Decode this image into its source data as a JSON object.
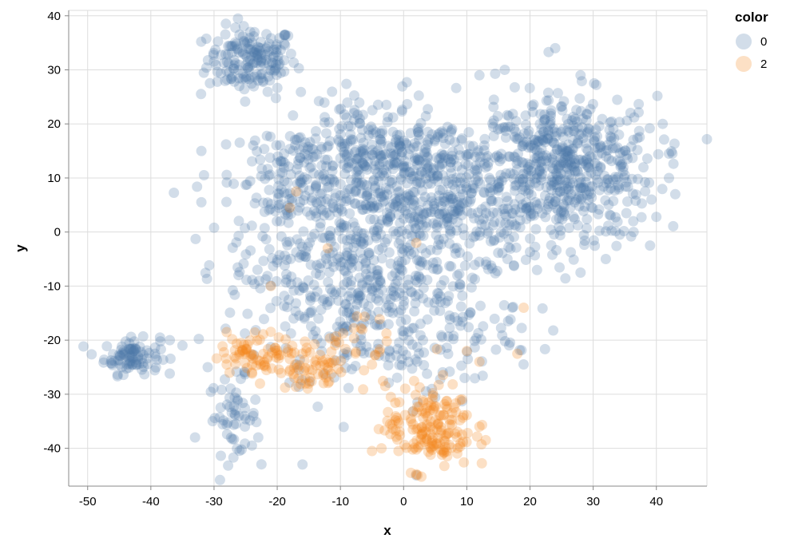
{
  "chart_data": {
    "type": "scatter",
    "xlabel": "x",
    "ylabel": "y",
    "xlim": [
      -53,
      48
    ],
    "ylim": [
      -47,
      41
    ],
    "x_ticks": [
      -50,
      -40,
      -30,
      -20,
      -10,
      0,
      10,
      20,
      30,
      40
    ],
    "y_ticks": [
      -40,
      -30,
      -20,
      -10,
      0,
      10,
      20,
      30,
      40
    ],
    "grid": true,
    "legend": {
      "title": "color",
      "position": "top-right"
    },
    "colors": {
      "0": "#4c78a8",
      "2": "#f58518"
    },
    "opacity": 0.25,
    "series": [
      {
        "name": "0",
        "clusters": [
          {
            "cx": -24,
            "cy": 32,
            "sx": 3.5,
            "sy": 3.0,
            "n": 170
          },
          {
            "cx": -43,
            "cy": -23,
            "sx": 2.2,
            "sy": 1.6,
            "n": 90
          },
          {
            "cx": -27,
            "cy": -34,
            "sx": 2.0,
            "sy": 3.5,
            "n": 55
          },
          {
            "cx": 26,
            "cy": 12,
            "sx": 7.0,
            "sy": 6.5,
            "n": 480
          },
          {
            "cx": 5,
            "cy": 6,
            "sx": 11.0,
            "sy": 8.0,
            "n": 650
          },
          {
            "cx": -12,
            "cy": -6,
            "sx": 8.0,
            "sy": 9.0,
            "n": 300
          },
          {
            "cx": -5,
            "cy": 15,
            "sx": 8.0,
            "sy": 5.0,
            "n": 200
          },
          {
            "cx": 0,
            "cy": -18,
            "sx": 9.0,
            "sy": 6.0,
            "n": 200
          },
          {
            "cx": -20,
            "cy": 10,
            "sx": 4.0,
            "sy": 5.0,
            "n": 80
          }
        ],
        "points": [
          [
            24,
            34
          ],
          [
            -32,
            15
          ],
          [
            -32,
            5.5
          ],
          [
            -30,
            0.8
          ],
          [
            -31,
            -25
          ],
          [
            -37,
            -20
          ],
          [
            -35,
            -21
          ],
          [
            -33,
            -38
          ],
          [
            -24,
            -39.5
          ],
          [
            -23,
            -38
          ],
          [
            40,
            2.8
          ],
          [
            41,
            20
          ],
          [
            42,
            14.5
          ],
          [
            42,
            10
          ],
          [
            43,
            7
          ],
          [
            39,
            -2.5
          ],
          [
            36,
            -0.8
          ],
          [
            32,
            -5
          ],
          [
            28,
            -7.5
          ],
          [
            -16,
            -43
          ],
          [
            2,
            -45
          ],
          [
            -26,
            27
          ],
          [
            -23,
            28
          ],
          [
            16,
            30
          ],
          [
            12,
            29
          ],
          [
            28,
            29
          ]
        ]
      },
      {
        "name": "2",
        "clusters": [
          {
            "cx": 4,
            "cy": -36,
            "sx": 3.5,
            "sy": 4.0,
            "n": 170
          },
          {
            "cx": -23,
            "cy": -22.5,
            "sx": 3.0,
            "sy": 1.8,
            "n": 70
          },
          {
            "cx": -14,
            "cy": -25,
            "sx": 3.0,
            "sy": 2.2,
            "n": 60
          },
          {
            "cx": -8,
            "cy": -20,
            "sx": 2.5,
            "sy": 3.0,
            "n": 25
          }
        ],
        "points": [
          [
            -28,
            -18.5
          ],
          [
            -28,
            -24.5
          ],
          [
            -17,
            7.5
          ],
          [
            -18,
            4.5
          ],
          [
            -21,
            -10
          ],
          [
            18,
            -22.5
          ],
          [
            19,
            -14
          ],
          [
            12,
            -36
          ],
          [
            13,
            -38.5
          ],
          [
            2,
            -44.8
          ],
          [
            -3.5,
            -40
          ],
          [
            -5,
            -40.5
          ],
          [
            12,
            -24
          ],
          [
            10,
            -22
          ],
          [
            -12,
            -3
          ],
          [
            2,
            -2
          ]
        ]
      }
    ]
  },
  "legend_items": [
    {
      "label": "0",
      "key": "0"
    },
    {
      "label": "2",
      "key": "2"
    }
  ]
}
